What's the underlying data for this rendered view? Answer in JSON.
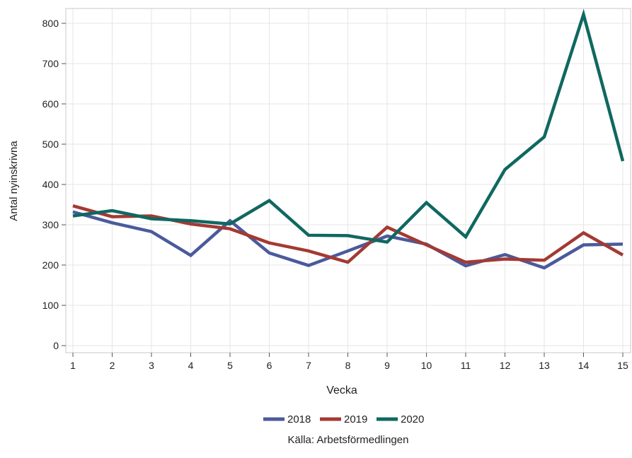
{
  "chart_data": {
    "type": "line",
    "title": "",
    "xlabel": "Vecka",
    "ylabel": "Antal nyinskrivna",
    "x": [
      1,
      2,
      3,
      4,
      5,
      6,
      7,
      8,
      9,
      10,
      11,
      12,
      13,
      14,
      15
    ],
    "xlim": [
      1,
      15
    ],
    "ylim": [
      0,
      840
    ],
    "y_ticks": [
      0,
      100,
      200,
      300,
      400,
      500,
      600,
      700,
      800
    ],
    "grid": true,
    "legend": "bottom",
    "series": [
      {
        "name": "2018",
        "color": "#4b5a9b",
        "values": [
          332,
          305,
          283,
          224,
          310,
          230,
          199,
          235,
          272,
          252,
          198,
          226,
          193,
          250,
          252
        ]
      },
      {
        "name": "2019",
        "color": "#a33a33",
        "values": [
          347,
          320,
          322,
          302,
          290,
          255,
          235,
          207,
          294,
          250,
          207,
          215,
          212,
          280,
          225
        ]
      },
      {
        "name": "2020",
        "color": "#0f6860",
        "values": [
          322,
          335,
          315,
          310,
          302,
          360,
          274,
          273,
          257,
          355,
          270,
          437,
          518,
          822,
          458
        ]
      }
    ],
    "source_note": "Källa: Arbetsförmedlingen"
  }
}
